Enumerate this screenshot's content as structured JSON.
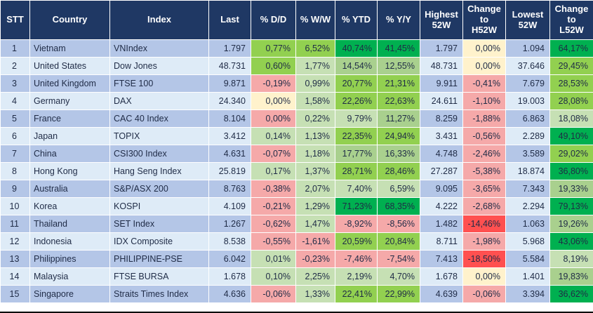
{
  "table": {
    "headers": [
      "STT",
      "Country",
      "Index",
      "Last",
      "% D/D",
      "% W/W",
      "% YTD",
      "% Y/Y",
      "Highest\n52W",
      "Change\nto\nH52W",
      "Lowest\n52W",
      "Change\nto\nL52W"
    ],
    "rows": [
      {
        "stt": "1",
        "country": "Vietnam",
        "index": "VNIndex",
        "last": "1.797",
        "dd": {
          "v": "0,77%",
          "t": "bg"
        },
        "ww": {
          "v": "6,52%",
          "t": "bg"
        },
        "ytd": {
          "v": "40,74%",
          "t": "dg"
        },
        "yy": {
          "v": "41,45%",
          "t": "dg"
        },
        "high": "1.797",
        "chg_h": {
          "v": "0,00%",
          "t": "yl"
        },
        "low": "1.094",
        "chg_l": {
          "v": "64,17%",
          "t": "dg"
        }
      },
      {
        "stt": "2",
        "country": "United States",
        "index": "Dow Jones",
        "last": "48.731",
        "dd": {
          "v": "0,60%",
          "t": "bg"
        },
        "ww": {
          "v": "1,77%",
          "t": "lg"
        },
        "ytd": {
          "v": "14,54%",
          "t": "mg"
        },
        "yy": {
          "v": "12,55%",
          "t": "mg"
        },
        "high": "48.731",
        "chg_h": {
          "v": "0,00%",
          "t": "yl"
        },
        "low": "37.646",
        "chg_l": {
          "v": "29,45%",
          "t": "bg"
        }
      },
      {
        "stt": "3",
        "country": "United Kingdom",
        "index": "FTSE 100",
        "last": "9.871",
        "dd": {
          "v": "-0,19%",
          "t": "pk"
        },
        "ww": {
          "v": "0,99%",
          "t": "lg"
        },
        "ytd": {
          "v": "20,77%",
          "t": "bg"
        },
        "yy": {
          "v": "21,31%",
          "t": "bg"
        },
        "high": "9.911",
        "chg_h": {
          "v": "-0,41%",
          "t": "pk"
        },
        "low": "7.679",
        "chg_l": {
          "v": "28,53%",
          "t": "bg"
        }
      },
      {
        "stt": "4",
        "country": "Germany",
        "index": "DAX",
        "last": "24.340",
        "dd": {
          "v": "0,00%",
          "t": "yl"
        },
        "ww": {
          "v": "1,58%",
          "t": "lg"
        },
        "ytd": {
          "v": "22,26%",
          "t": "bg"
        },
        "yy": {
          "v": "22,63%",
          "t": "bg"
        },
        "high": "24.611",
        "chg_h": {
          "v": "-1,10%",
          "t": "pk"
        },
        "low": "19.003",
        "chg_l": {
          "v": "28,08%",
          "t": "bg"
        }
      },
      {
        "stt": "5",
        "country": "France",
        "index": "CAC 40 Index",
        "last": "8.104",
        "dd": {
          "v": "0,00%",
          "t": "pk"
        },
        "ww": {
          "v": "0,22%",
          "t": "lg"
        },
        "ytd": {
          "v": "9,79%",
          "t": "lg"
        },
        "yy": {
          "v": "11,27%",
          "t": "mg"
        },
        "high": "8.259",
        "chg_h": {
          "v": "-1,88%",
          "t": "pk"
        },
        "low": "6.863",
        "chg_l": {
          "v": "18,08%",
          "t": "lg"
        }
      },
      {
        "stt": "6",
        "country": "Japan",
        "index": "TOPIX",
        "last": "3.412",
        "dd": {
          "v": "0,14%",
          "t": "lg"
        },
        "ww": {
          "v": "1,13%",
          "t": "lg"
        },
        "ytd": {
          "v": "22,35%",
          "t": "bg"
        },
        "yy": {
          "v": "24,94%",
          "t": "bg"
        },
        "high": "3.431",
        "chg_h": {
          "v": "-0,56%",
          "t": "pk"
        },
        "low": "2.289",
        "chg_l": {
          "v": "49,10%",
          "t": "dg"
        }
      },
      {
        "stt": "7",
        "country": "China",
        "index": "CSI300 Index",
        "last": "4.631",
        "dd": {
          "v": "-0,07%",
          "t": "pk"
        },
        "ww": {
          "v": "1,18%",
          "t": "lg"
        },
        "ytd": {
          "v": "17,77%",
          "t": "mg"
        },
        "yy": {
          "v": "16,33%",
          "t": "mg"
        },
        "high": "4.748",
        "chg_h": {
          "v": "-2,46%",
          "t": "pk"
        },
        "low": "3.589",
        "chg_l": {
          "v": "29,02%",
          "t": "bg"
        }
      },
      {
        "stt": "8",
        "country": "Hong Kong",
        "index": "Hang Seng Index",
        "last": "25.819",
        "dd": {
          "v": "0,17%",
          "t": "lg"
        },
        "ww": {
          "v": "1,37%",
          "t": "lg"
        },
        "ytd": {
          "v": "28,71%",
          "t": "bg"
        },
        "yy": {
          "v": "28,46%",
          "t": "bg"
        },
        "high": "27.287",
        "chg_h": {
          "v": "-5,38%",
          "t": "pk"
        },
        "low": "18.874",
        "chg_l": {
          "v": "36,80%",
          "t": "dg"
        }
      },
      {
        "stt": "9",
        "country": "Australia",
        "index": "S&P/ASX 200",
        "last": "8.763",
        "dd": {
          "v": "-0,38%",
          "t": "pk"
        },
        "ww": {
          "v": "2,07%",
          "t": "lg"
        },
        "ytd": {
          "v": "7,40%",
          "t": "lg"
        },
        "yy": {
          "v": "6,59%",
          "t": "lg"
        },
        "high": "9.095",
        "chg_h": {
          "v": "-3,65%",
          "t": "pk"
        },
        "low": "7.343",
        "chg_l": {
          "v": "19,33%",
          "t": "mg"
        }
      },
      {
        "stt": "10",
        "country": "Korea",
        "index": "KOSPI",
        "last": "4.109",
        "dd": {
          "v": "-0,21%",
          "t": "pk"
        },
        "ww": {
          "v": "1,29%",
          "t": "lg"
        },
        "ytd": {
          "v": "71,23%",
          "t": "dg"
        },
        "yy": {
          "v": "68,35%",
          "t": "dg"
        },
        "high": "4.222",
        "chg_h": {
          "v": "-2,68%",
          "t": "pk"
        },
        "low": "2.294",
        "chg_l": {
          "v": "79,13%",
          "t": "dg"
        }
      },
      {
        "stt": "11",
        "country": "Thailand",
        "index": "SET Index",
        "last": "1.267",
        "dd": {
          "v": "-0,62%",
          "t": "pk"
        },
        "ww": {
          "v": "1,47%",
          "t": "lg"
        },
        "ytd": {
          "v": "-8,92%",
          "t": "pk"
        },
        "yy": {
          "v": "-8,56%",
          "t": "pk"
        },
        "high": "1.482",
        "chg_h": {
          "v": "-14,46%",
          "t": "rd"
        },
        "low": "1.063",
        "chg_l": {
          "v": "19,26%",
          "t": "mg"
        }
      },
      {
        "stt": "12",
        "country": "Indonesia",
        "index": "IDX Composite",
        "last": "8.538",
        "dd": {
          "v": "-0,55%",
          "t": "pk"
        },
        "ww": {
          "v": "-1,61%",
          "t": "pk"
        },
        "ytd": {
          "v": "20,59%",
          "t": "bg"
        },
        "yy": {
          "v": "20,84%",
          "t": "bg"
        },
        "high": "8.711",
        "chg_h": {
          "v": "-1,98%",
          "t": "pk"
        },
        "low": "5.968",
        "chg_l": {
          "v": "43,06%",
          "t": "dg"
        }
      },
      {
        "stt": "13",
        "country": "Philippines",
        "index": "PHILIPPINE-PSE",
        "last": "6.042",
        "dd": {
          "v": "0,01%",
          "t": "lg"
        },
        "ww": {
          "v": "-0,23%",
          "t": "pk"
        },
        "ytd": {
          "v": "-7,46%",
          "t": "pk"
        },
        "yy": {
          "v": "-7,54%",
          "t": "pk"
        },
        "high": "7.413",
        "chg_h": {
          "v": "-18,50%",
          "t": "rd"
        },
        "low": "5.584",
        "chg_l": {
          "v": "8,19%",
          "t": "lg"
        }
      },
      {
        "stt": "14",
        "country": "Malaysia",
        "index": "FTSE BURSA",
        "last": "1.678",
        "dd": {
          "v": "0,10%",
          "t": "lg"
        },
        "ww": {
          "v": "2,25%",
          "t": "lg"
        },
        "ytd": {
          "v": "2,19%",
          "t": "lg"
        },
        "yy": {
          "v": "4,70%",
          "t": "lg"
        },
        "high": "1.678",
        "chg_h": {
          "v": "0,00%",
          "t": "yl"
        },
        "low": "1.401",
        "chg_l": {
          "v": "19,83%",
          "t": "mg"
        }
      },
      {
        "stt": "15",
        "country": "Singapore",
        "index": "Straits Times Index",
        "last": "4.636",
        "dd": {
          "v": "-0,06%",
          "t": "pk"
        },
        "ww": {
          "v": "1,33%",
          "t": "lg"
        },
        "ytd": {
          "v": "22,41%",
          "t": "bg"
        },
        "yy": {
          "v": "22,99%",
          "t": "bg"
        },
        "high": "4.639",
        "chg_h": {
          "v": "-0,06%",
          "t": "pk"
        },
        "low": "3.394",
        "chg_l": {
          "v": "36,62%",
          "t": "dg"
        }
      }
    ]
  },
  "colors": {
    "header_bg": "#1F3864",
    "row_odd": "#B4C6E7",
    "row_even": "#DEEBF7",
    "text": "#1F2B46",
    "lg": "#C6E0B4",
    "mg": "#A9D08E",
    "bg": "#92D050",
    "dg": "#00B050",
    "pk": "#F5A9A9",
    "rd": "#FF5050",
    "yl": "#FFF2CC"
  }
}
